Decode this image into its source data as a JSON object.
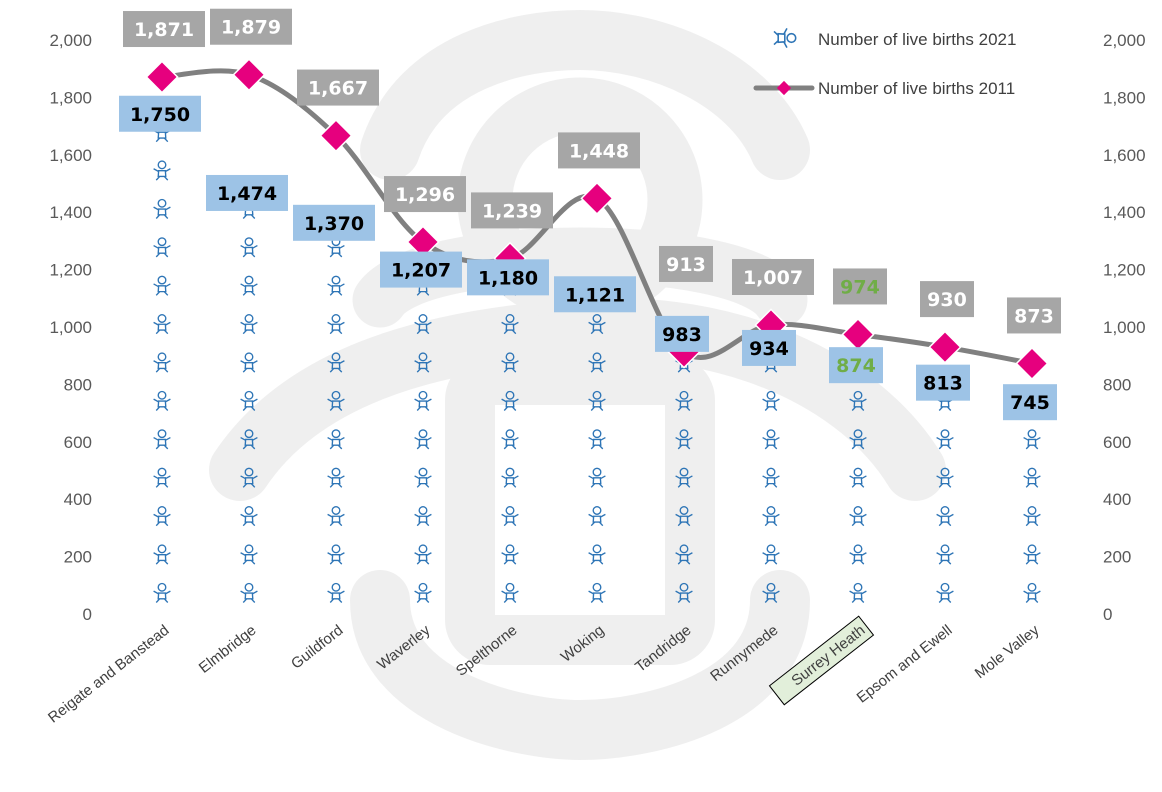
{
  "chart_data": {
    "type": "line",
    "categories": [
      "Reigate and Banstead",
      "Elmbridge",
      "Guildford",
      "Waverley",
      "Spelthorne",
      "Woking",
      "Tandridge",
      "Runnymede",
      "Surrey Heath",
      "Epsom and Ewell",
      "Mole Valley"
    ],
    "series": [
      {
        "name": "Number of live births 2021",
        "values": [
          1750,
          1474,
          1370,
          1207,
          1180,
          1121,
          983,
          934,
          874,
          813,
          745
        ],
        "color": "#2e75b6",
        "label_fill": "#9dc3e6",
        "marker": "baby-icon"
      },
      {
        "name": "Number of live births 2011",
        "values": [
          1871,
          1879,
          1667,
          1296,
          1239,
          1448,
          913,
          1007,
          974,
          930,
          873
        ],
        "color": "#808080",
        "marker_color": "#e6007e",
        "label_fill": "#a6a6a6"
      }
    ],
    "highlight": {
      "category": "Surrey Heath",
      "label_color": "#70ad47",
      "box_fill": "#e2efda"
    },
    "y_ticks": [
      "0",
      "200",
      "400",
      "600",
      "800",
      "1,000",
      "1,200",
      "1,400",
      "1,600",
      "1,800",
      "2,000"
    ],
    "ylim": [
      0,
      2000
    ],
    "legend_position": "top-right",
    "grid": false,
    "title": "",
    "xlabel": "",
    "ylabel": ""
  }
}
